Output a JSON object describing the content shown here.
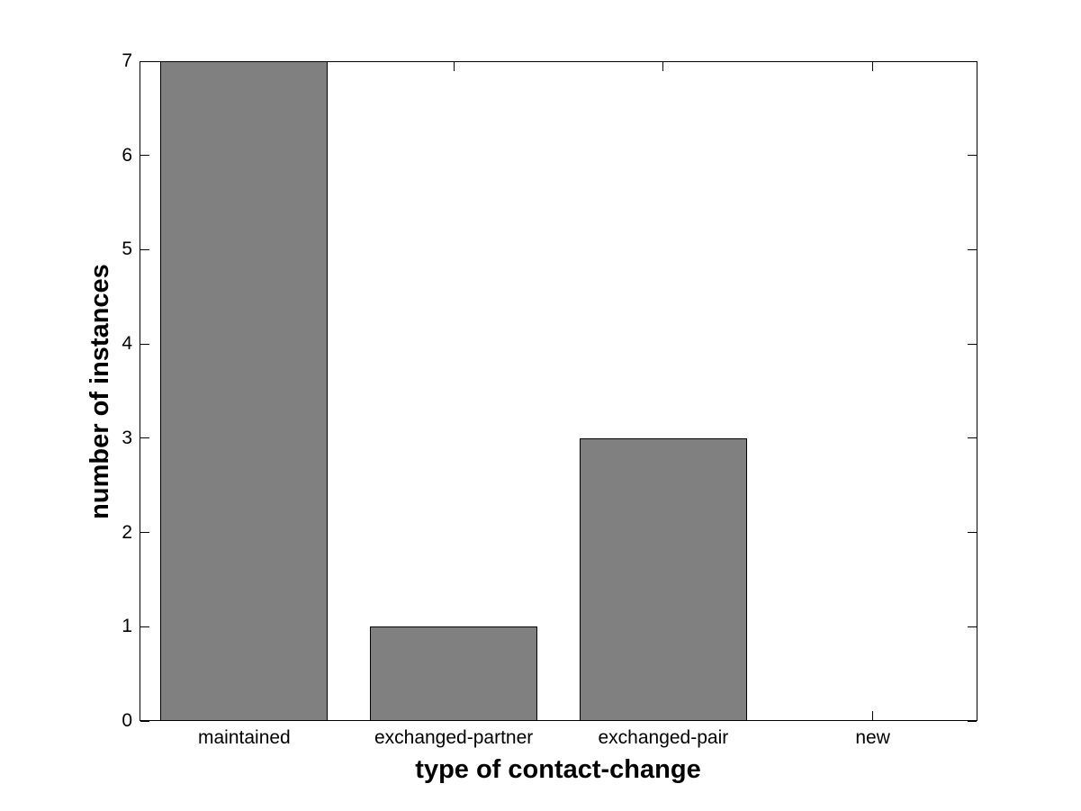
{
  "chart_data": {
    "type": "bar",
    "categories": [
      "maintained",
      "exchanged-partner",
      "exchanged-pair",
      "new"
    ],
    "values": [
      7,
      1,
      3,
      0
    ],
    "xlabel": "type of contact-change",
    "ylabel": "number of instances",
    "ylim": [
      0,
      7
    ],
    "yticks": [
      0,
      1,
      2,
      3,
      4,
      5,
      6,
      7
    ],
    "bar_color": "#808080",
    "bar_edge_color": "#000000",
    "axis_color": "#000000",
    "background": "#ffffff",
    "bar_width_fraction": 0.8,
    "grid": false,
    "box": true,
    "tick_direction": "in",
    "legend": "none"
  }
}
